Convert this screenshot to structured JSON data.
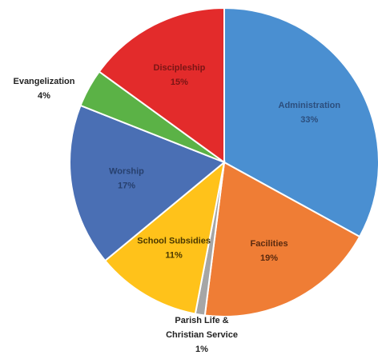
{
  "chart_data": {
    "type": "pie",
    "title": "",
    "categories": [
      "Administration",
      "Facilities",
      "Parish Life & Christian Service",
      "School Subsidies",
      "Worship",
      "Evangelization",
      "Discipleship"
    ],
    "values": [
      33,
      19,
      1,
      11,
      17,
      4,
      15
    ],
    "labels": [
      "33%",
      "19%",
      "1%",
      "11%",
      "17%",
      "4%",
      "15%"
    ],
    "label_lines": [
      [
        "Administration"
      ],
      [
        "Facilities"
      ],
      [
        "Parish Life &",
        "Christian Service"
      ],
      [
        "School Subsidies"
      ],
      [
        "Worship"
      ],
      [
        "Evangelization"
      ],
      [
        "Discipleship"
      ]
    ],
    "colors": [
      "#4a8fd1",
      "#ef7d35",
      "#a6a6a6",
      "#ffc21a",
      "#4a6fb4",
      "#5bb246",
      "#e32b2b"
    ],
    "label_colors": [
      "#2c4e7d",
      "#5a2a0f",
      "#222222",
      "#4a3800",
      "#27406e",
      "#222222",
      "#7a1515"
    ],
    "label_placement": [
      "inside",
      "inside",
      "outside",
      "inside",
      "inside",
      "outside",
      "inside"
    ],
    "start_angle": "12 o'clock",
    "direction": "clockwise",
    "legend": "none"
  }
}
